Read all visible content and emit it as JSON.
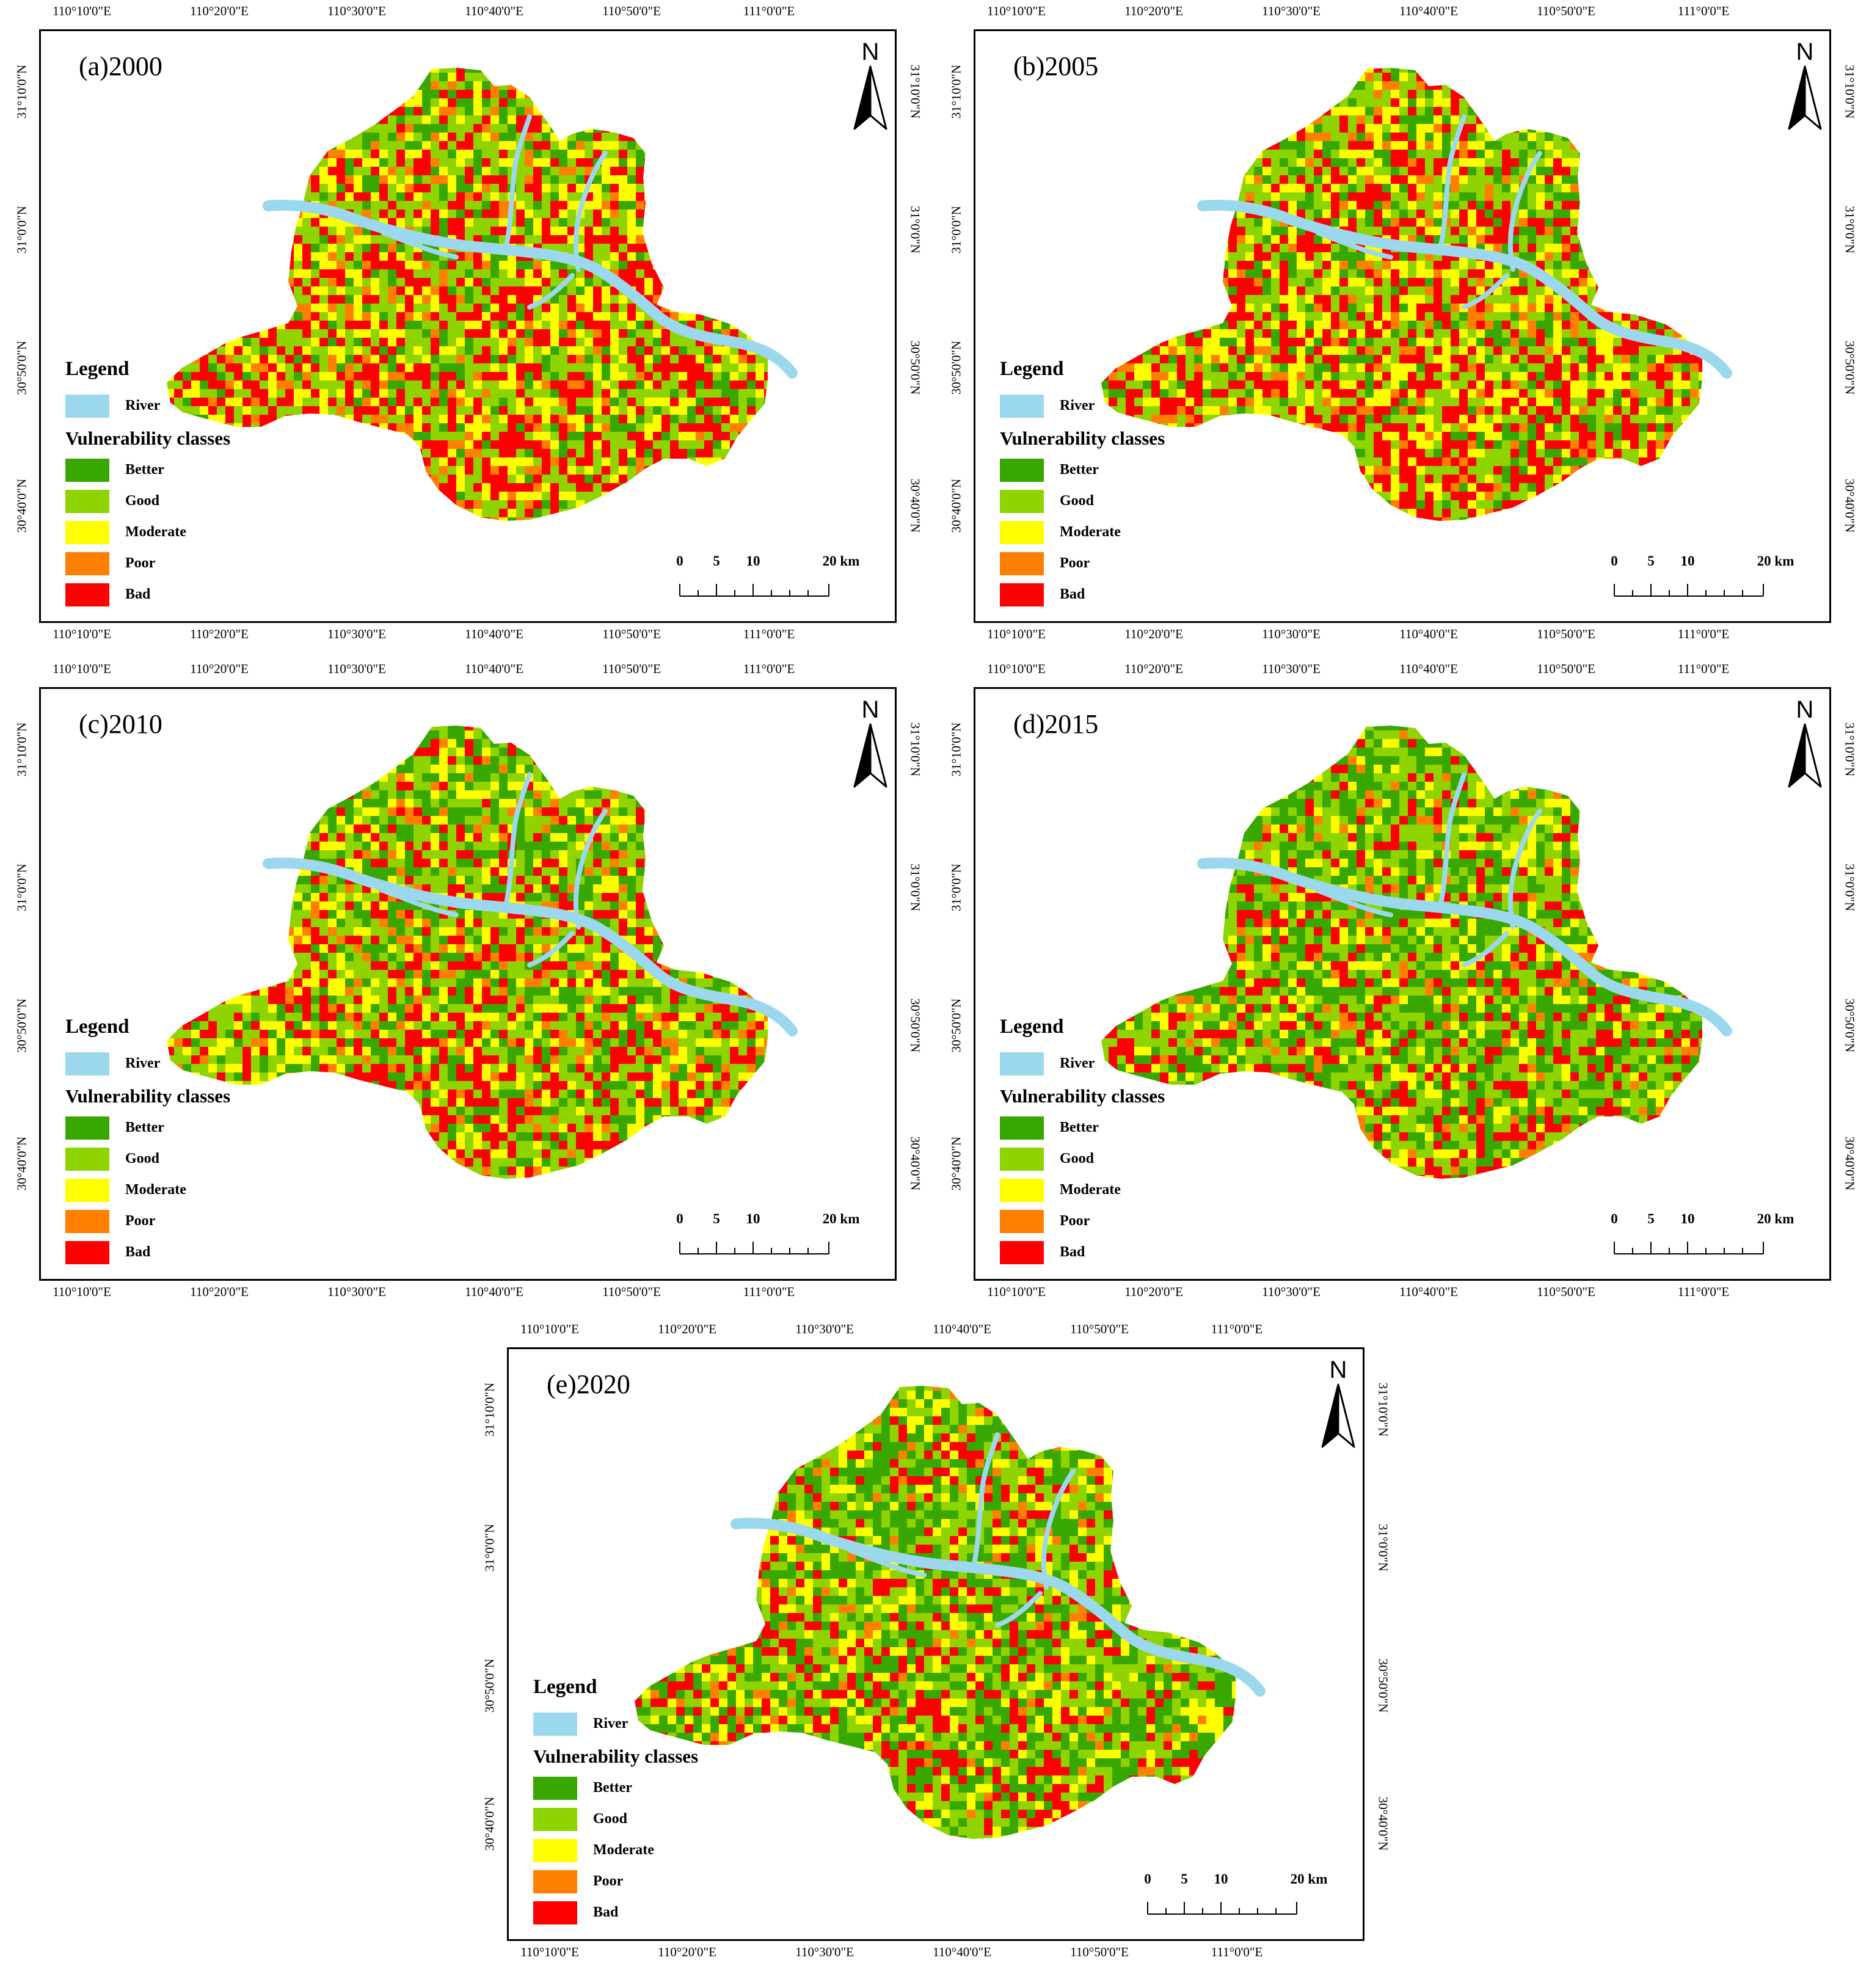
{
  "colors": {
    "river": "#9bd8ee",
    "better": "#38a800",
    "good": "#8fd400",
    "moderate": "#ffff00",
    "poor": "#ff7f00",
    "bad": "#ff0000"
  },
  "axes": {
    "lon_ticks": [
      "110°10'0\"E",
      "110°20'0\"E",
      "110°30'0\"E",
      "110°40'0\"E",
      "110°50'0\"E",
      "111°0'0\"E"
    ],
    "lat_ticks": [
      "31°10'0\"N",
      "31°0'0\"N",
      "30°50'0\"N",
      "30°40'0\"N"
    ]
  },
  "north_arrow": {
    "label": "N"
  },
  "legend": {
    "title": "Legend",
    "river_label": "River",
    "classes_title": "Vulnerability classes",
    "classes": [
      {
        "key": "better",
        "label": "Better"
      },
      {
        "key": "good",
        "label": "Good"
      },
      {
        "key": "moderate",
        "label": "Moderate"
      },
      {
        "key": "poor",
        "label": "Poor"
      },
      {
        "key": "bad",
        "label": "Bad"
      }
    ]
  },
  "scale_bar": {
    "labels": [
      "0",
      "5",
      "10",
      "20 km"
    ]
  },
  "panels": [
    {
      "id": "a",
      "title": "(a)2000",
      "mix": {
        "better": 0.14,
        "good": 0.28,
        "moderate": 0.2,
        "poor": 0.08,
        "bad": 0.3
      }
    },
    {
      "id": "b",
      "title": "(b)2005",
      "mix": {
        "better": 0.15,
        "good": 0.29,
        "moderate": 0.2,
        "poor": 0.08,
        "bad": 0.28
      }
    },
    {
      "id": "c",
      "title": "(c)2010",
      "mix": {
        "better": 0.24,
        "good": 0.3,
        "moderate": 0.18,
        "poor": 0.07,
        "bad": 0.21
      }
    },
    {
      "id": "d",
      "title": "(d)2015",
      "mix": {
        "better": 0.34,
        "good": 0.3,
        "moderate": 0.14,
        "poor": 0.05,
        "bad": 0.17
      }
    },
    {
      "id": "e",
      "title": "(e)2020",
      "mix": {
        "better": 0.33,
        "good": 0.29,
        "moderate": 0.15,
        "poor": 0.05,
        "bad": 0.18
      }
    }
  ]
}
